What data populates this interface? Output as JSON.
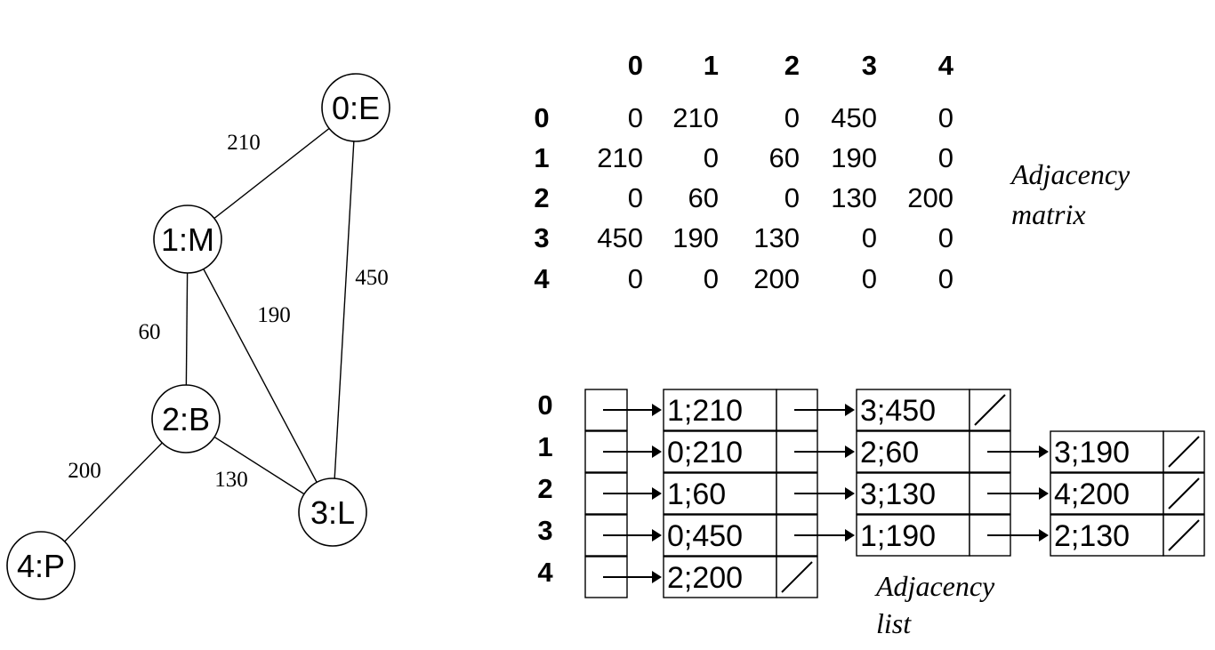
{
  "graph": {
    "nodes": [
      {
        "id": 0,
        "label": "0:E"
      },
      {
        "id": 1,
        "label": "1:M"
      },
      {
        "id": 2,
        "label": "2:B"
      },
      {
        "id": 3,
        "label": "3:L"
      },
      {
        "id": 4,
        "label": "4:P"
      }
    ],
    "edges": [
      {
        "from": 0,
        "to": 1,
        "weight": "210"
      },
      {
        "from": 0,
        "to": 3,
        "weight": "450"
      },
      {
        "from": 1,
        "to": 2,
        "weight": "60"
      },
      {
        "from": 1,
        "to": 3,
        "weight": "190"
      },
      {
        "from": 2,
        "to": 3,
        "weight": "130"
      },
      {
        "from": 2,
        "to": 4,
        "weight": "200"
      }
    ]
  },
  "matrix": {
    "col_headers": [
      "0",
      "1",
      "2",
      "3",
      "4"
    ],
    "row_headers": [
      "0",
      "1",
      "2",
      "3",
      "4"
    ],
    "rows": [
      [
        "0",
        "210",
        "0",
        "450",
        "0"
      ],
      [
        "210",
        "0",
        "60",
        "190",
        "0"
      ],
      [
        "0",
        "60",
        "0",
        "130",
        "200"
      ],
      [
        "450",
        "190",
        "130",
        "0",
        "0"
      ],
      [
        "0",
        "0",
        "200",
        "0",
        "0"
      ]
    ],
    "caption_line1": "Adjacency",
    "caption_line2": "matrix"
  },
  "adj_list": {
    "row_labels": [
      "0",
      "1",
      "2",
      "3",
      "4"
    ],
    "rows": [
      [
        "1;210",
        "3;450"
      ],
      [
        "0;210",
        "2;60",
        "3;190"
      ],
      [
        "1;60",
        "3;130",
        "4;200"
      ],
      [
        "0;450",
        "1;190",
        "2;130"
      ],
      [
        "2;200"
      ]
    ],
    "caption_line1": "Adjacency",
    "caption_line2": "list"
  }
}
